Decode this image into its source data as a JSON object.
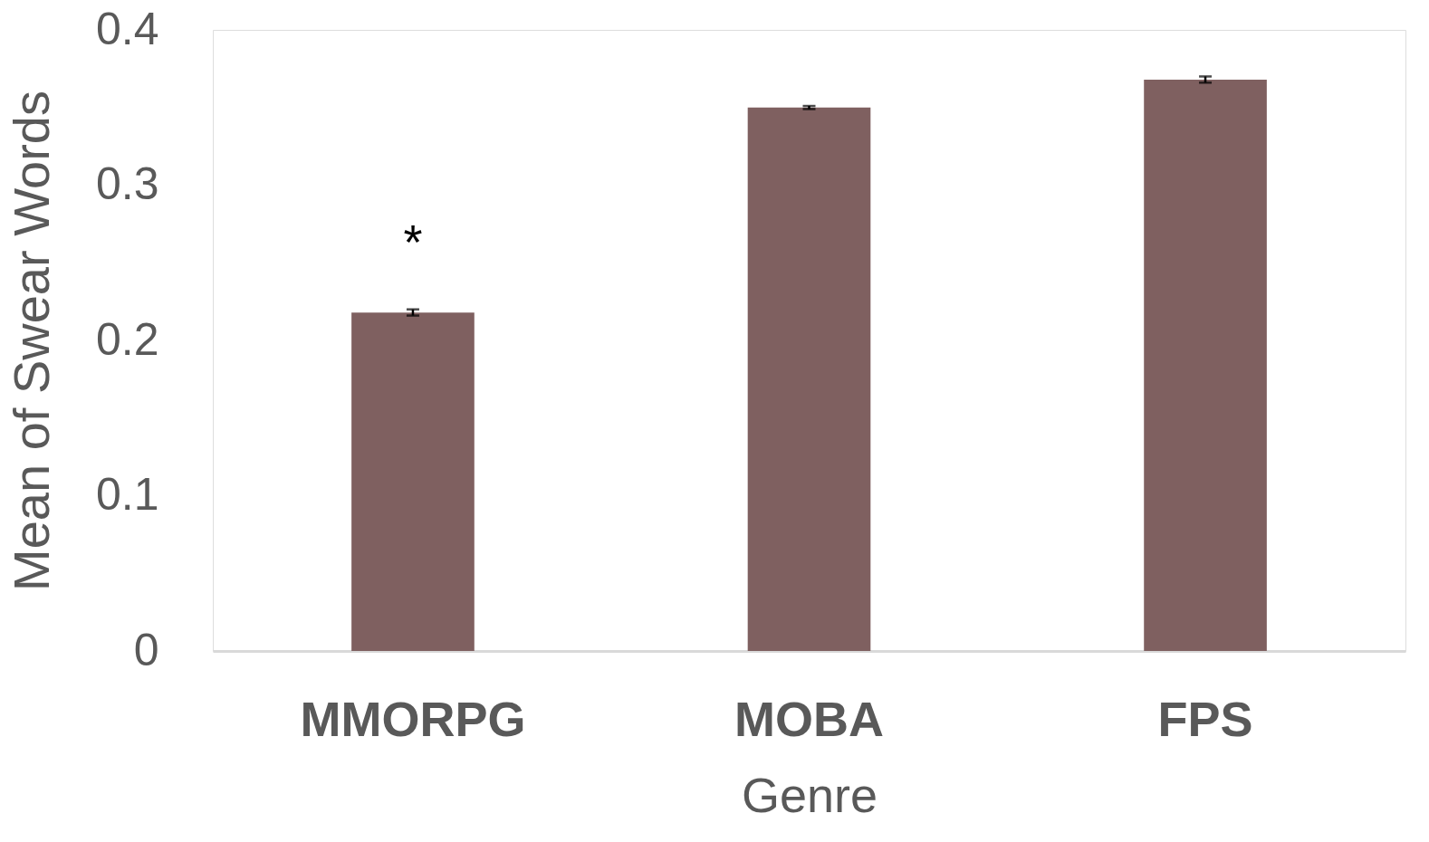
{
  "chart_data": {
    "type": "bar",
    "xlabel": "Genre",
    "ylabel": "Mean of Swear Words",
    "categories": [
      "MMORPG",
      "MOBA",
      "FPS"
    ],
    "values": [
      0.218,
      0.35,
      0.368
    ],
    "errors": [
      0.002,
      0.001,
      0.002
    ],
    "color": "#7f6060",
    "ylim": [
      0,
      0.4
    ],
    "yticks": [
      0,
      0.1,
      0.2,
      0.3,
      0.4
    ],
    "grid": false,
    "annotations": [
      "*"
    ]
  }
}
